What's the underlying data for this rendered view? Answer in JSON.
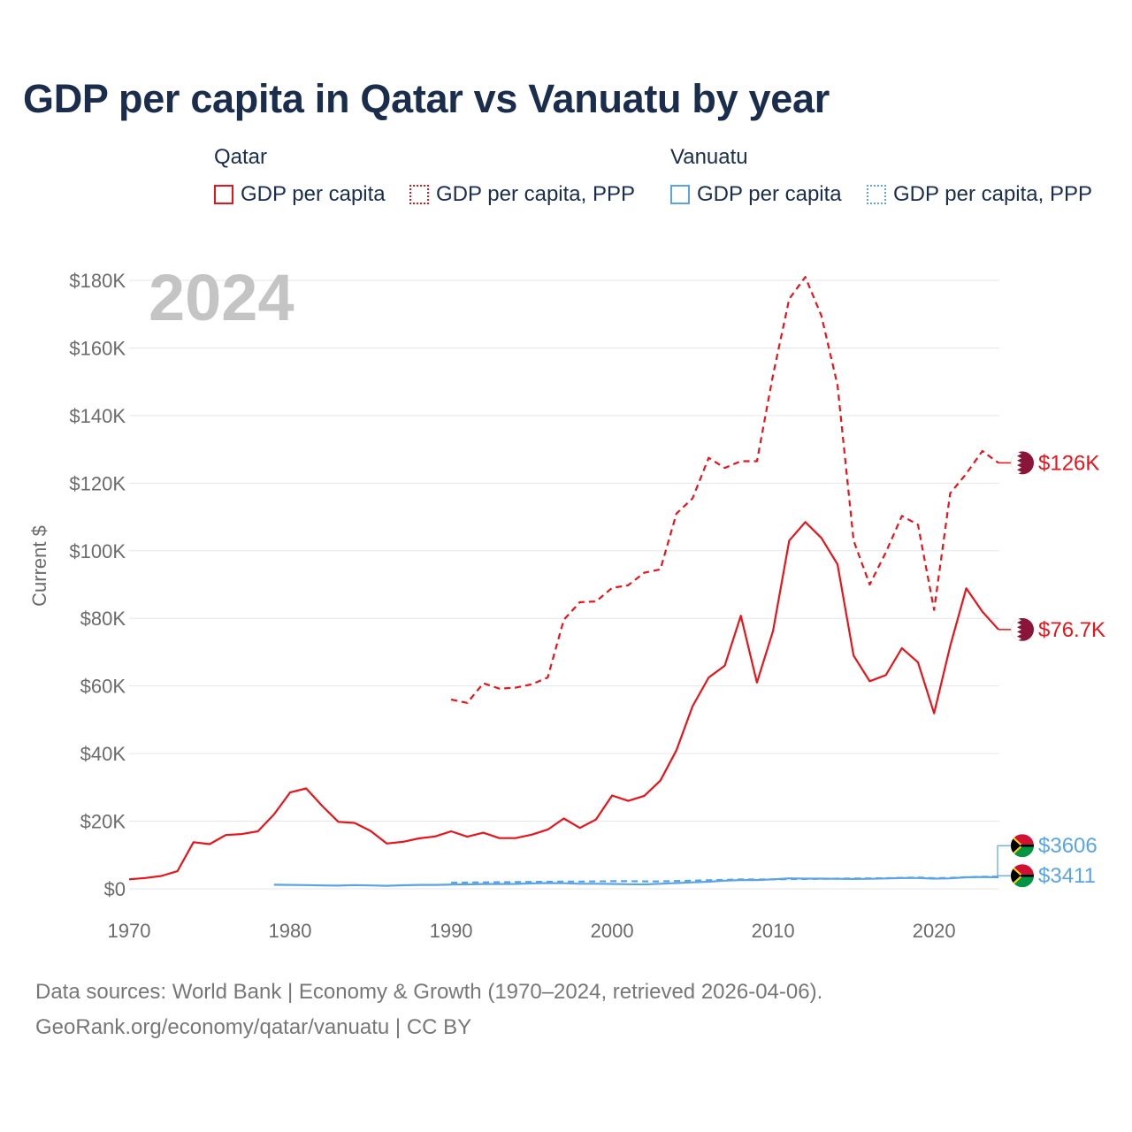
{
  "title": "GDP per capita in Qatar vs Vanuatu by year",
  "legend": {
    "groups": [
      {
        "name": "Qatar",
        "color": "#e8141b",
        "items": [
          {
            "label": "GDP per capita",
            "style": "solid"
          },
          {
            "label": "GDP per capita, PPP",
            "style": "dotted"
          }
        ]
      },
      {
        "name": "Vanuatu",
        "color": "#5aa4e6",
        "items": [
          {
            "label": "GDP per capita",
            "style": "solid"
          },
          {
            "label": "GDP per capita, PPP",
            "style": "dotted"
          }
        ]
      }
    ]
  },
  "year_watermark": "2024",
  "footer": {
    "line1": "Data sources: World Bank | Economy & Growth (1970–2024, retrieved 2026-04-06).",
    "line2": "GeoRank.org/economy/qatar/vanuatu | CC BY"
  },
  "chart_data": {
    "type": "line",
    "ylabel": "Current $",
    "xlabel": "",
    "xlim": [
      1970,
      2024
    ],
    "ylim": [
      0,
      180000
    ],
    "x_ticks": [
      1970,
      1980,
      1990,
      2000,
      2010,
      2020
    ],
    "y_ticks": [
      0,
      20000,
      40000,
      60000,
      80000,
      100000,
      120000,
      140000,
      160000,
      180000
    ],
    "y_tick_labels": [
      "$0",
      "$20K",
      "$40K",
      "$60K",
      "$80K",
      "$100K",
      "$120K",
      "$140K",
      "$160K",
      "$180K"
    ],
    "grid": true,
    "series": [
      {
        "name": "Qatar GDP per capita",
        "country": "Qatar",
        "color": "#e8141b",
        "dash": "solid",
        "end_label": "$76.7K",
        "x": [
          1970,
          1971,
          1972,
          1973,
          1974,
          1975,
          1976,
          1977,
          1978,
          1979,
          1980,
          1981,
          1982,
          1983,
          1984,
          1985,
          1986,
          1987,
          1988,
          1989,
          1990,
          1991,
          1992,
          1993,
          1994,
          1995,
          1996,
          1997,
          1998,
          1999,
          2000,
          2001,
          2002,
          2003,
          2004,
          2005,
          2006,
          2007,
          2008,
          2009,
          2010,
          2011,
          2012,
          2013,
          2014,
          2015,
          2016,
          2017,
          2018,
          2019,
          2020,
          2021,
          2022,
          2023,
          2024
        ],
        "y": [
          2800,
          3200,
          3800,
          5200,
          13800,
          13200,
          15900,
          16200,
          17000,
          22000,
          28500,
          29700,
          24500,
          19800,
          19500,
          17100,
          13400,
          13900,
          14900,
          15500,
          17000,
          15400,
          16600,
          15000,
          15000,
          16000,
          17500,
          20800,
          18000,
          20500,
          27600,
          26000,
          27500,
          32000,
          41000,
          54000,
          62500,
          66000,
          80800,
          61000,
          76300,
          103000,
          108500,
          103800,
          96000,
          69000,
          61400,
          63200,
          71200,
          67000,
          51900,
          71800,
          88900,
          82000,
          76700
        ]
      },
      {
        "name": "Qatar GDP per capita, PPP",
        "country": "Qatar",
        "color": "#e8141b",
        "dash": "dashed",
        "end_label": "$126K",
        "x": [
          1990,
          1991,
          1992,
          1993,
          1994,
          1995,
          1996,
          1997,
          1998,
          1999,
          2000,
          2001,
          2002,
          2003,
          2004,
          2005,
          2006,
          2007,
          2008,
          2009,
          2010,
          2011,
          2012,
          2013,
          2014,
          2015,
          2016,
          2017,
          2018,
          2019,
          2020,
          2021,
          2022,
          2023,
          2024
        ],
        "y": [
          56000,
          55000,
          60800,
          59200,
          59500,
          60500,
          62500,
          79600,
          84800,
          85000,
          89000,
          89800,
          93500,
          94500,
          111000,
          115500,
          127500,
          124500,
          126500,
          126500,
          152000,
          174500,
          181000,
          169500,
          149000,
          103000,
          90000,
          99500,
          110300,
          107700,
          82500,
          117000,
          122800,
          129500,
          126000
        ]
      },
      {
        "name": "Vanuatu GDP per capita",
        "country": "Vanuatu",
        "color": "#5aa4e6",
        "dash": "solid",
        "end_label": "$3411",
        "x": [
          1979,
          1980,
          1981,
          1982,
          1983,
          1984,
          1985,
          1986,
          1987,
          1988,
          1989,
          1990,
          1991,
          1992,
          1993,
          1994,
          1995,
          1996,
          1997,
          1998,
          1999,
          2000,
          2001,
          2002,
          2003,
          2004,
          2005,
          2006,
          2007,
          2008,
          2009,
          2010,
          2011,
          2012,
          2013,
          2014,
          2015,
          2016,
          2017,
          2018,
          2019,
          2020,
          2021,
          2022,
          2023,
          2024
        ],
        "y": [
          1200,
          1150,
          1100,
          1000,
          950,
          1100,
          1000,
          900,
          1050,
          1150,
          1150,
          1250,
          1300,
          1400,
          1400,
          1450,
          1600,
          1700,
          1650,
          1500,
          1500,
          1450,
          1350,
          1300,
          1500,
          1700,
          1900,
          2100,
          2400,
          2600,
          2600,
          2800,
          3100,
          3000,
          3000,
          2950,
          2900,
          2950,
          3050,
          3200,
          3200,
          3000,
          3100,
          3400,
          3500,
          3411
        ]
      },
      {
        "name": "Vanuatu GDP per capita, PPP",
        "country": "Vanuatu",
        "color": "#5aa4e6",
        "dash": "dashed",
        "end_label": "$3606",
        "x": [
          1990,
          1991,
          1992,
          1993,
          1994,
          1995,
          1996,
          1997,
          1998,
          1999,
          2000,
          2001,
          2002,
          2003,
          2004,
          2005,
          2006,
          2007,
          2008,
          2009,
          2010,
          2011,
          2012,
          2013,
          2014,
          2015,
          2016,
          2017,
          2018,
          2019,
          2020,
          2021,
          2022,
          2023,
          2024
        ],
        "y": [
          1800,
          1850,
          1900,
          1950,
          2000,
          2050,
          2100,
          2150,
          2150,
          2200,
          2250,
          2250,
          2200,
          2200,
          2300,
          2400,
          2550,
          2650,
          2800,
          2750,
          2800,
          2850,
          2900,
          2950,
          3000,
          3050,
          3100,
          3150,
          3250,
          3350,
          3150,
          3250,
          3450,
          3550,
          3606
        ]
      }
    ]
  }
}
